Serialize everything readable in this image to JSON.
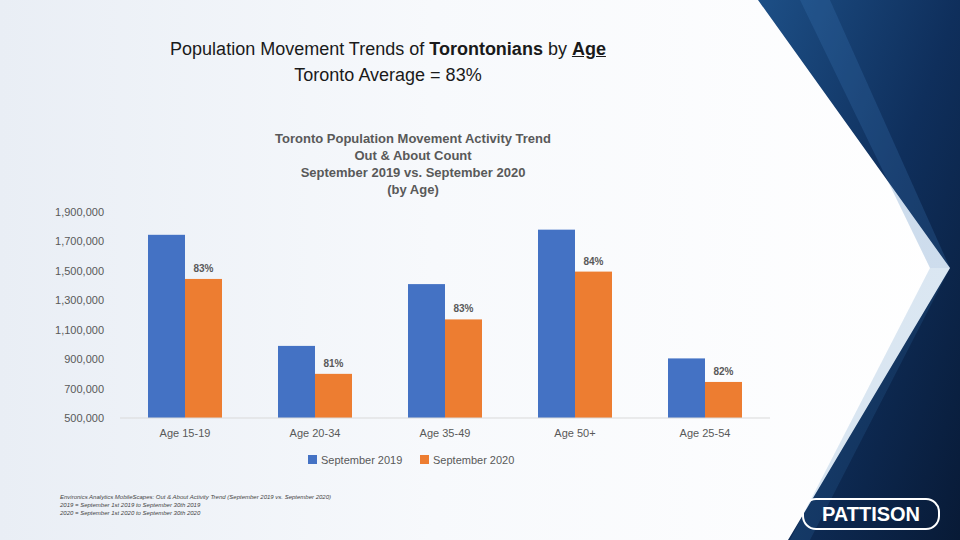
{
  "slide": {
    "title_parts": [
      "Population Movement Trends of ",
      "Torontonians",
      " by ",
      "Age"
    ],
    "subtitle": "Toronto Average = 83%",
    "source": [
      "Environics Analytics MobileScapes: Out & About Activity Trend (September 2019 vs. September 2020)",
      "2019 = September 1st 2019 to September 30th 2019",
      "2020 = September 1st 2020 to September 30th 2020"
    ],
    "logo": "PATTISON"
  },
  "chart_data": {
    "type": "bar",
    "title": [
      "Toronto Population Movement Activity Trend",
      "Out & About Count",
      "September 2019 vs. September 2020",
      "(by Age)"
    ],
    "categories": [
      "Age 15-19",
      "Age 20-34",
      "Age 35-49",
      "Age 50+",
      "Age 25-54"
    ],
    "series": [
      {
        "name": "September 2019",
        "color": "#4472c4",
        "values": [
          1745000,
          990000,
          1410000,
          1780000,
          905000
        ]
      },
      {
        "name": "September 2020",
        "color": "#ed7d31",
        "values": [
          1445000,
          800000,
          1170000,
          1495000,
          745000
        ]
      }
    ],
    "annotations": [
      "83%",
      "81%",
      "83%",
      "84%",
      "82%"
    ],
    "ylim": [
      500000,
      1900000
    ],
    "yticks": [
      {
        "value": 500000,
        "label": "500,000"
      },
      {
        "value": 700000,
        "label": "700,000"
      },
      {
        "value": 900000,
        "label": "900,000"
      },
      {
        "value": 1100000,
        "label": "1,100,000"
      },
      {
        "value": 1300000,
        "label": "1,300,000"
      },
      {
        "value": 1500000,
        "label": "1,500,000"
      },
      {
        "value": 1700000,
        "label": "1,700,000"
      },
      {
        "value": 1900000,
        "label": "1,900,000"
      }
    ],
    "grid": false,
    "legend": "bottom"
  }
}
